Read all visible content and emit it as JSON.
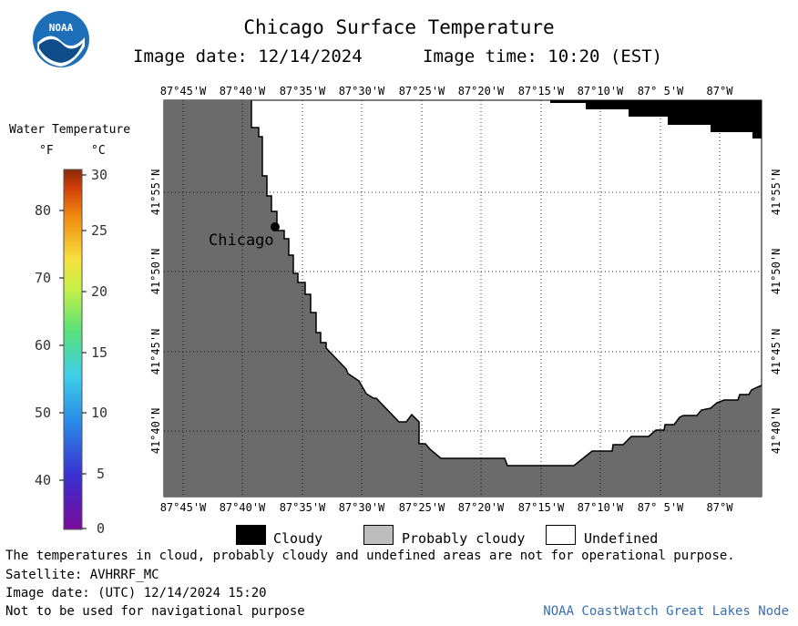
{
  "header": {
    "title": "Chicago Surface Temperature",
    "image_date": "Image date: 12/14/2024",
    "image_time": "Image time: 10:20 (EST)",
    "logo_text": "NOAA"
  },
  "map": {
    "lon_labels_top": [
      "87°45'W",
      "87°40'W",
      "87°35'W",
      "87°30'W",
      "87°25'W",
      "87°20'W",
      "87°15'W",
      "87°10'W",
      "87° 5'W",
      "87°W"
    ],
    "lon_labels_bottom": [
      "87°45'W",
      "87°40'W",
      "87°35'W",
      "87°30'W",
      "87°25'W",
      "87°20'W",
      "87°15'W",
      "87°10'W",
      "87° 5'W",
      "87°W"
    ],
    "lat_labels": [
      "41°55'N",
      "41°50'N",
      "41°45'N",
      "41°40'N"
    ],
    "city_label": "Chicago",
    "colors": {
      "land": "#6b6b6b",
      "cloudy": "#000000",
      "undefined": "#ffffff",
      "probably_cloudy": "#bdbdbd"
    }
  },
  "colorbar": {
    "title": "Water Temperature",
    "unit_f": "°F",
    "unit_c": "°C",
    "f_ticks": [
      "80",
      "70",
      "60",
      "50",
      "40"
    ],
    "c_ticks": [
      "30",
      "25",
      "20",
      "15",
      "10",
      "5",
      "0"
    ]
  },
  "legend": {
    "cloudy": "Cloudy",
    "probably_cloudy": "Probably cloudy",
    "undefined": "Undefined"
  },
  "footer": {
    "disclaimer": "The temperatures in cloud, probably cloudy and undefined areas are not for operational purpose.",
    "satellite": "Satellite: AVHRRF_MC",
    "utc_date": "Image date: (UTC) 12/14/2024  15:20",
    "navigation": "Not to be used for navigational purpose",
    "credit": "NOAA CoastWatch Great Lakes Node"
  }
}
